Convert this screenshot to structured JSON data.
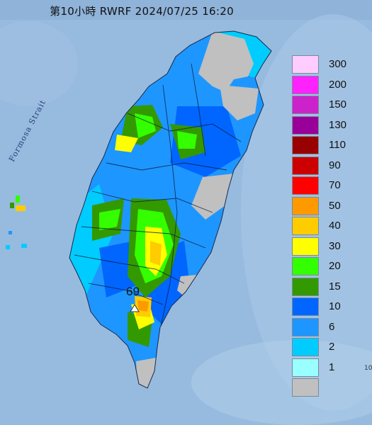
{
  "title": "第10小時  RWRF 2024/07/25 16:20",
  "strait_label": "Formosa Strait",
  "peak_marker": {
    "value": "69",
    "icon": "triangle-marker-icon"
  },
  "edge_label": "10",
  "legend": {
    "items": [
      {
        "label": "300",
        "color": "#ffccff"
      },
      {
        "label": "200",
        "color": "#ff22ff"
      },
      {
        "label": "150",
        "color": "#cc22cc"
      },
      {
        "label": "130",
        "color": "#990099"
      },
      {
        "label": "110",
        "color": "#990000"
      },
      {
        "label": "90",
        "color": "#cc0000"
      },
      {
        "label": "70",
        "color": "#ff0000"
      },
      {
        "label": "50",
        "color": "#ff9900"
      },
      {
        "label": "40",
        "color": "#ffcc00"
      },
      {
        "label": "30",
        "color": "#ffff00"
      },
      {
        "label": "20",
        "color": "#33ff00"
      },
      {
        "label": "15",
        "color": "#339900"
      },
      {
        "label": "10",
        "color": "#0066ff"
      },
      {
        "label": "6",
        "color": "#1e96ff"
      },
      {
        "label": "2",
        "color": "#00ccff"
      },
      {
        "label": "1",
        "color": "#99ffff"
      },
      {
        "label": "",
        "color": "#c0c0c0"
      }
    ]
  }
}
